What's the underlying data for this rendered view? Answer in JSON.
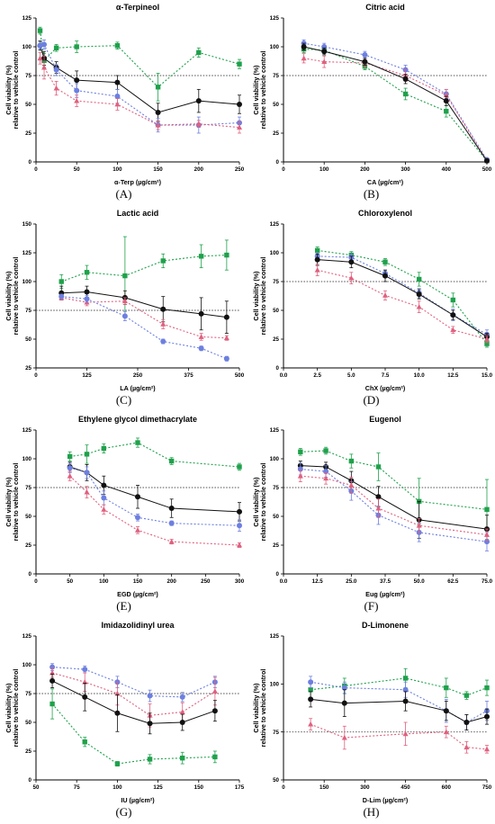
{
  "series_styles": {
    "black": {
      "color": "#111111",
      "marker": "circle",
      "dash": "none"
    },
    "green": {
      "color": "#1fa14b",
      "marker": "square",
      "dash": "2,2"
    },
    "blue": {
      "color": "#6d7fe0",
      "marker": "circle",
      "dash": "2,2"
    },
    "pink": {
      "color": "#e0607e",
      "marker": "triangle",
      "dash": "2,2"
    },
    "reference": {
      "color": "#555555"
    }
  },
  "chart_data": [
    {
      "type": "line",
      "title": "α-Terpineol",
      "panel_label": "(A)",
      "xlabel": "α-Terp (µg/cm²)",
      "ylabel": [
        "Cell viability (%)",
        "relative to vehicle control"
      ],
      "xlim": [
        0,
        250
      ],
      "ylim": [
        0,
        125
      ],
      "xticks": [
        0,
        50,
        100,
        150,
        200,
        250
      ],
      "yticks": [
        0,
        25,
        50,
        75,
        100,
        125
      ],
      "reference_y": 75,
      "series": [
        {
          "style": "green",
          "x": [
            5,
            10,
            25,
            50,
            100,
            150,
            200,
            250
          ],
          "y": [
            114,
            88,
            99,
            100,
            101,
            65,
            95,
            85
          ],
          "err": [
            3,
            6,
            3,
            5,
            3,
            12,
            4,
            4
          ]
        },
        {
          "style": "black",
          "x": [
            5,
            10,
            25,
            50,
            100,
            150,
            200,
            250
          ],
          "y": [
            101,
            90,
            82,
            71,
            69,
            43,
            53,
            50
          ],
          "err": [
            4,
            6,
            5,
            8,
            6,
            8,
            10,
            8
          ]
        },
        {
          "style": "blue",
          "x": [
            5,
            10,
            25,
            50,
            100,
            150,
            200,
            250
          ],
          "y": [
            101,
            102,
            80,
            62,
            57,
            32,
            32,
            34
          ],
          "err": [
            3,
            4,
            5,
            6,
            6,
            6,
            7,
            5
          ]
        },
        {
          "style": "pink",
          "x": [
            5,
            10,
            25,
            50,
            100,
            150,
            200,
            250
          ],
          "y": [
            90,
            82,
            64,
            53,
            50,
            32,
            33,
            30
          ],
          "err": [
            5,
            10,
            6,
            5,
            5,
            4,
            3,
            5
          ]
        }
      ]
    },
    {
      "type": "line",
      "title": "Citric acid",
      "panel_label": "(B)",
      "xlabel": "CA (µg/cm²)",
      "ylabel": [
        "Cell viability (%)",
        "relative to vehicle control"
      ],
      "xlim": [
        0,
        500
      ],
      "ylim": [
        0,
        125
      ],
      "xticks": [
        0,
        100,
        200,
        300,
        400,
        500
      ],
      "yticks": [
        0,
        25,
        50,
        75,
        100,
        125
      ],
      "reference_y": 75,
      "series": [
        {
          "style": "green",
          "x": [
            50,
            100,
            200,
            300,
            400,
            500
          ],
          "y": [
            98,
            97,
            83,
            59,
            44,
            1
          ],
          "err": [
            3,
            3,
            3,
            5,
            5,
            1
          ]
        },
        {
          "style": "blue",
          "x": [
            50,
            100,
            200,
            300,
            400,
            500
          ],
          "y": [
            103,
            100,
            93,
            80,
            59,
            2
          ],
          "err": [
            3,
            3,
            3,
            4,
            4,
            1
          ]
        },
        {
          "style": "pink",
          "x": [
            50,
            100,
            200,
            300,
            400,
            500
          ],
          "y": [
            90,
            87,
            86,
            75,
            58,
            1
          ],
          "err": [
            4,
            5,
            4,
            5,
            5,
            1
          ]
        },
        {
          "style": "black",
          "x": [
            50,
            100,
            200,
            300,
            400,
            500
          ],
          "y": [
            100,
            96,
            87,
            72,
            53,
            1
          ],
          "err": [
            3,
            3,
            3,
            4,
            4,
            1
          ]
        }
      ]
    },
    {
      "type": "line",
      "title": "Lactic acid",
      "panel_label": "(C)",
      "xlabel": "LA (µg/cm²)",
      "ylabel": [
        "Cell viability (%)",
        "relative to vehicle control"
      ],
      "xlim": [
        0,
        500
      ],
      "ylim": [
        25,
        150
      ],
      "xticks": [
        0,
        125,
        250,
        375,
        500
      ],
      "yticks": [
        25,
        50,
        75,
        100,
        125,
        150
      ],
      "reference_y": 75,
      "series": [
        {
          "style": "green",
          "x": [
            62.5,
            125,
            218.75,
            312.5,
            406.25,
            468.75
          ],
          "y": [
            100,
            108,
            105,
            118,
            122,
            123
          ],
          "err": [
            6,
            6,
            34,
            6,
            10,
            13
          ]
        },
        {
          "style": "black",
          "x": [
            62.5,
            125,
            218.75,
            312.5,
            406.25,
            468.75
          ],
          "y": [
            90,
            91,
            86,
            76,
            72,
            69
          ],
          "err": [
            6,
            5,
            6,
            11,
            14,
            14
          ]
        },
        {
          "style": "pink",
          "x": [
            62.5,
            125,
            218.75,
            312.5,
            406.25,
            468.75
          ],
          "y": [
            86,
            82,
            83,
            63,
            52,
            51
          ],
          "err": [
            2,
            3,
            3,
            4,
            3,
            2
          ]
        },
        {
          "style": "blue",
          "x": [
            62.5,
            125,
            218.75,
            312.5,
            406.25,
            468.75
          ],
          "y": [
            87,
            85,
            70,
            48,
            42,
            33
          ],
          "err": [
            2,
            3,
            4,
            2,
            2,
            2
          ]
        }
      ]
    },
    {
      "type": "line",
      "title": "Chloroxylenol",
      "panel_label": "(D)",
      "xlabel": "ChX (µg/cm²)",
      "ylabel": [
        "Cell viability (%)",
        "relative to vehicle control"
      ],
      "xlim": [
        0,
        15
      ],
      "ylim": [
        0,
        125
      ],
      "xticks": [
        0.0,
        2.5,
        5.0,
        7.5,
        10.0,
        12.5,
        15.0
      ],
      "xtick_labels": [
        "0.0",
        "2.5",
        "5.0",
        "7.5",
        "10.0",
        "12.5",
        "15.0"
      ],
      "yticks": [
        0,
        25,
        50,
        75,
        100,
        125
      ],
      "reference_y": 75,
      "series": [
        {
          "style": "green",
          "x": [
            2.5,
            5,
            7.5,
            10,
            12.5,
            15
          ],
          "y": [
            102,
            98,
            92,
            77,
            59,
            21
          ],
          "err": [
            3,
            3,
            3,
            6,
            6,
            3
          ]
        },
        {
          "style": "blue",
          "x": [
            2.5,
            5,
            7.5,
            10,
            12.5,
            15
          ],
          "y": [
            97,
            96,
            82,
            65,
            46,
            29
          ],
          "err": [
            3,
            3,
            3,
            4,
            5,
            4
          ]
        },
        {
          "style": "black",
          "x": [
            2.5,
            5,
            7.5,
            10,
            12.5,
            15
          ],
          "y": [
            94,
            92,
            80,
            64,
            46,
            27
          ],
          "err": [
            5,
            5,
            5,
            4,
            4,
            3
          ]
        },
        {
          "style": "pink",
          "x": [
            2.5,
            5,
            7.5,
            10,
            12.5,
            15
          ],
          "y": [
            85,
            78,
            63,
            53,
            33,
            25
          ],
          "err": [
            5,
            5,
            4,
            5,
            3,
            3
          ]
        }
      ]
    },
    {
      "type": "line",
      "title": "Ethylene glycol dimethacrylate",
      "panel_label": "(E)",
      "xlabel": "EGD (µg/cm²)",
      "ylabel": [
        "Cell viability (%)",
        "relative to vehicle control"
      ],
      "xlim": [
        0,
        300
      ],
      "ylim": [
        0,
        125
      ],
      "xticks": [
        0,
        50,
        100,
        150,
        200,
        250,
        300
      ],
      "yticks": [
        0,
        25,
        50,
        75,
        100,
        125
      ],
      "reference_y": 75,
      "series": [
        {
          "style": "green",
          "x": [
            50,
            75,
            100,
            150,
            200,
            300
          ],
          "y": [
            102,
            104,
            109,
            114,
            98,
            93
          ],
          "err": [
            4,
            8,
            4,
            4,
            3,
            3
          ]
        },
        {
          "style": "black",
          "x": [
            50,
            75,
            100,
            150,
            200,
            300
          ],
          "y": [
            93,
            88,
            77,
            67,
            57,
            54
          ],
          "err": [
            4,
            7,
            8,
            10,
            8,
            8
          ]
        },
        {
          "style": "blue",
          "x": [
            50,
            75,
            100,
            150,
            200,
            300
          ],
          "y": [
            92,
            88,
            66,
            49,
            44,
            42
          ],
          "err": [
            4,
            5,
            6,
            3,
            2,
            5
          ]
        },
        {
          "style": "pink",
          "x": [
            50,
            75,
            100,
            150,
            200,
            300
          ],
          "y": [
            85,
            71,
            56,
            38,
            28,
            25
          ],
          "err": [
            4,
            5,
            4,
            3,
            2,
            2
          ]
        }
      ]
    },
    {
      "type": "line",
      "title": "Eugenol",
      "panel_label": "(F)",
      "xlabel": "Eug (µg/cm²)",
      "ylabel": [
        "Cell viability (%)",
        "relative to vehicle control"
      ],
      "xlim": [
        0,
        75
      ],
      "ylim": [
        0,
        125
      ],
      "xticks": [
        0.0,
        12.5,
        25.0,
        37.5,
        50.0,
        62.5,
        75.0
      ],
      "xtick_labels": [
        "0.0",
        "12.5",
        "25.0",
        "37.5",
        "50.0",
        "62.5",
        "75.0"
      ],
      "yticks": [
        0,
        25,
        50,
        75,
        100,
        125
      ],
      "reference_y": 75,
      "series": [
        {
          "style": "green",
          "x": [
            6.25,
            15.625,
            25,
            35,
            50,
            75
          ],
          "y": [
            106,
            107,
            98,
            93,
            63,
            56
          ],
          "err": [
            3,
            3,
            6,
            12,
            20,
            26
          ]
        },
        {
          "style": "black",
          "x": [
            6.25,
            15.625,
            25,
            35,
            50,
            75
          ],
          "y": [
            94,
            93,
            81,
            67,
            47,
            39
          ],
          "err": [
            4,
            4,
            8,
            9,
            16,
            12
          ]
        },
        {
          "style": "blue",
          "x": [
            6.25,
            15.625,
            25,
            35,
            50,
            75
          ],
          "y": [
            91,
            89,
            72,
            51,
            36,
            28
          ],
          "err": [
            5,
            5,
            8,
            8,
            8,
            8
          ]
        },
        {
          "style": "pink",
          "x": [
            6.25,
            15.625,
            25,
            35,
            50,
            75
          ],
          "y": [
            85,
            83,
            77,
            57,
            42,
            34
          ],
          "err": [
            5,
            5,
            7,
            8,
            6,
            5
          ]
        }
      ]
    },
    {
      "type": "line",
      "title": "Imidazolidinyl urea",
      "panel_label": "(G)",
      "xlabel": "IU (µg/cm²)",
      "ylabel": [
        "Cell viability (%)",
        "relative to vehicle control"
      ],
      "xlim": [
        50,
        175
      ],
      "ylim": [
        0,
        125
      ],
      "xticks": [
        50,
        75,
        100,
        125,
        150,
        175
      ],
      "yticks": [
        0,
        25,
        50,
        75,
        100,
        125
      ],
      "reference_y": 75,
      "series": [
        {
          "style": "blue",
          "x": [
            60,
            80,
            100,
            120,
            140,
            160
          ],
          "y": [
            98,
            96,
            85,
            73,
            72,
            85
          ],
          "err": [
            3,
            3,
            5,
            5,
            4,
            5
          ]
        },
        {
          "style": "pink",
          "x": [
            60,
            80,
            100,
            120,
            140,
            160
          ],
          "y": [
            93,
            85,
            75,
            56,
            59,
            77
          ],
          "err": [
            4,
            8,
            10,
            10,
            8,
            12
          ]
        },
        {
          "style": "black",
          "x": [
            60,
            80,
            100,
            120,
            140,
            160
          ],
          "y": [
            86,
            72,
            58,
            49,
            50,
            60
          ],
          "err": [
            6,
            12,
            16,
            9,
            7,
            9
          ]
        },
        {
          "style": "green",
          "x": [
            60,
            80,
            100,
            120,
            140,
            160
          ],
          "y": [
            66,
            33,
            14,
            18,
            19,
            20
          ],
          "err": [
            13,
            4,
            2,
            4,
            5,
            5
          ]
        }
      ]
    },
    {
      "type": "line",
      "title": "D-Limonene",
      "panel_label": "(H)",
      "xlabel": "D-Lim (µg/cm²)",
      "ylabel": [
        "Cell viability (%)",
        "relative to vehicle control"
      ],
      "xlim": [
        0,
        750
      ],
      "ylim": [
        50,
        125
      ],
      "xticks": [
        0,
        150,
        300,
        450,
        600,
        750
      ],
      "yticks": [
        50,
        75,
        100,
        125
      ],
      "reference_y": 75,
      "series": [
        {
          "style": "green",
          "x": [
            100,
            225,
            450,
            600,
            675,
            750
          ],
          "y": [
            97,
            99,
            103,
            98,
            94,
            98
          ],
          "err": [
            4,
            4,
            5,
            5,
            2,
            4
          ]
        },
        {
          "style": "blue",
          "x": [
            100,
            225,
            450,
            600,
            675,
            750
          ],
          "y": [
            101,
            98,
            97,
            86,
            80,
            86
          ],
          "err": [
            3,
            3,
            4,
            6,
            4,
            5
          ]
        },
        {
          "style": "black",
          "x": [
            100,
            225,
            450,
            600,
            675,
            750
          ],
          "y": [
            92,
            90,
            91,
            86,
            80,
            83
          ],
          "err": [
            4,
            7,
            5,
            5,
            4,
            4
          ]
        },
        {
          "style": "pink",
          "x": [
            100,
            225,
            450,
            600,
            675,
            750
          ],
          "y": [
            79,
            72,
            74,
            75,
            67,
            66
          ],
          "err": [
            3,
            6,
            6,
            3,
            3,
            2
          ]
        }
      ]
    }
  ]
}
